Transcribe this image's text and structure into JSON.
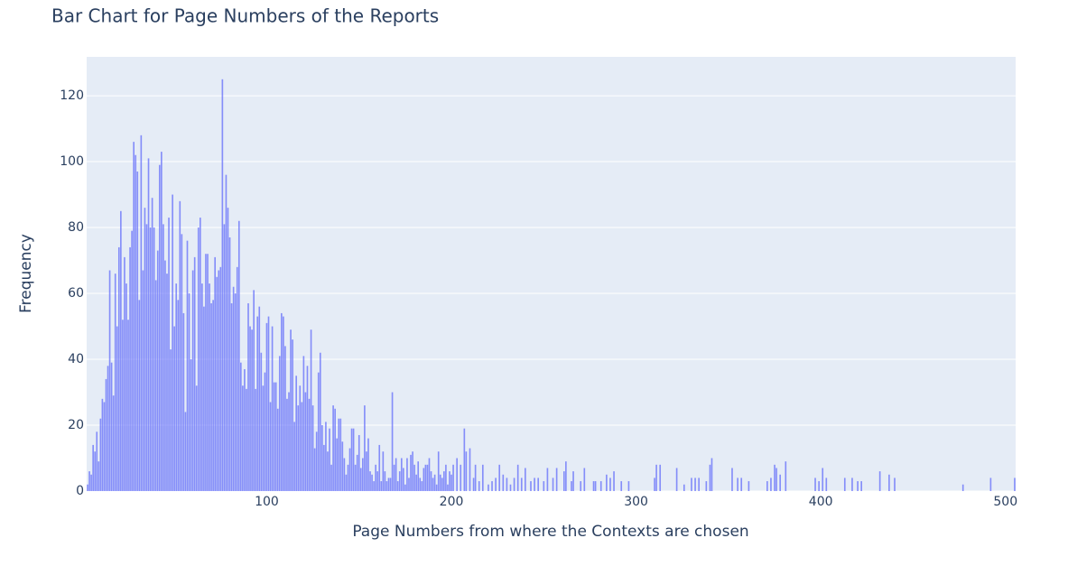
{
  "chart_data": {
    "type": "bar",
    "title": "Bar Chart for Page Numbers of the Reports",
    "x_label": "Page Numbers from where the Contexts are chosen",
    "y_label": "Frequency",
    "color": "#636efa",
    "grid": true,
    "xlim": [
      2.5,
      505.5
    ],
    "ylim": [
      0,
      131.8
    ],
    "xticks": [
      100,
      200,
      300,
      400,
      500
    ],
    "yticks": [
      0,
      20,
      40,
      60,
      80,
      100,
      120
    ],
    "x": [
      3,
      4,
      5,
      6,
      7,
      8,
      9,
      10,
      11,
      12,
      13,
      14,
      15,
      16,
      17,
      18,
      19,
      20,
      21,
      22,
      23,
      24,
      25,
      26,
      27,
      28,
      29,
      30,
      31,
      32,
      33,
      34,
      35,
      36,
      37,
      38,
      39,
      40,
      41,
      42,
      43,
      44,
      45,
      46,
      47,
      48,
      49,
      50,
      51,
      52,
      53,
      54,
      55,
      56,
      57,
      58,
      59,
      60,
      61,
      62,
      63,
      64,
      65,
      66,
      67,
      68,
      69,
      70,
      71,
      72,
      73,
      74,
      75,
      76,
      77,
      78,
      79,
      80,
      81,
      82,
      83,
      84,
      85,
      86,
      87,
      88,
      89,
      90,
      91,
      92,
      93,
      94,
      95,
      96,
      97,
      98,
      99,
      100,
      101,
      102,
      103,
      104,
      105,
      106,
      107,
      108,
      109,
      110,
      111,
      112,
      113,
      114,
      115,
      116,
      117,
      118,
      119,
      120,
      121,
      122,
      123,
      124,
      125,
      126,
      127,
      128,
      129,
      130,
      131,
      132,
      133,
      134,
      135,
      136,
      137,
      138,
      139,
      140,
      141,
      142,
      143,
      144,
      145,
      146,
      147,
      148,
      149,
      150,
      151,
      152,
      153,
      154,
      155,
      156,
      157,
      158,
      159,
      160,
      161,
      162,
      163,
      164,
      165,
      166,
      167,
      168,
      169,
      170,
      171,
      172,
      173,
      174,
      175,
      176,
      177,
      178,
      179,
      180,
      181,
      182,
      183,
      184,
      185,
      186,
      187,
      188,
      189,
      190,
      191,
      192,
      193,
      194,
      195,
      196,
      197,
      198,
      199,
      200,
      201,
      203,
      205,
      207,
      208,
      210,
      212,
      213,
      215,
      217,
      220,
      222,
      224,
      226,
      228,
      230,
      232,
      234,
      236,
      238,
      240,
      243,
      245,
      247,
      250,
      252,
      255,
      257,
      261,
      262,
      265,
      266,
      270,
      272,
      277,
      278,
      281,
      284,
      286,
      288,
      292,
      296,
      310,
      311,
      313,
      322,
      326,
      330,
      332,
      334,
      338,
      340,
      341,
      352,
      355,
      357,
      361,
      371,
      373,
      375,
      376,
      378,
      381,
      397,
      399,
      401,
      403,
      413,
      417,
      420,
      422,
      432,
      437,
      440,
      477,
      492,
      505
    ],
    "values": [
      2,
      6,
      5,
      14,
      12,
      18,
      9,
      22,
      28,
      27,
      34,
      38,
      67,
      39,
      29,
      66,
      50,
      74,
      85,
      52,
      71,
      63,
      52,
      74,
      79,
      106,
      102,
      97,
      58,
      108,
      67,
      86,
      81,
      101,
      80,
      89,
      80,
      64,
      73,
      99,
      103,
      81,
      70,
      66,
      83,
      43,
      90,
      50,
      63,
      58,
      88,
      78,
      54,
      24,
      76,
      60,
      40,
      67,
      71,
      32,
      80,
      83,
      63,
      56,
      72,
      72,
      63,
      57,
      58,
      71,
      65,
      67,
      68,
      125,
      81,
      96,
      86,
      77,
      57,
      62,
      60,
      68,
      82,
      39,
      32,
      37,
      31,
      57,
      50,
      49,
      61,
      31,
      53,
      56,
      42,
      32,
      36,
      51,
      53,
      27,
      50,
      33,
      33,
      25,
      41,
      54,
      53,
      44,
      28,
      30,
      49,
      46,
      21,
      35,
      26,
      32,
      27,
      41,
      30,
      38,
      28,
      49,
      26,
      13,
      18,
      36,
      42,
      20,
      14,
      21,
      12,
      19,
      8,
      26,
      25,
      16,
      22,
      22,
      15,
      10,
      5,
      8,
      13,
      19,
      19,
      8,
      11,
      17,
      7,
      10,
      26,
      12,
      16,
      6,
      5,
      3,
      8,
      6,
      14,
      3,
      12,
      6,
      3,
      4,
      4,
      30,
      8,
      10,
      3,
      6,
      10,
      7,
      2,
      10,
      4,
      11,
      12,
      8,
      5,
      9,
      4,
      3,
      7,
      8,
      8,
      10,
      6,
      4,
      5,
      2,
      12,
      5,
      4,
      6,
      8,
      2,
      6,
      5,
      8,
      10,
      8,
      19,
      12,
      13,
      4,
      8,
      3,
      8,
      2,
      3,
      4,
      8,
      5,
      4,
      2,
      4,
      8,
      4,
      7,
      3,
      4,
      4,
      3,
      7,
      4,
      7,
      6,
      9,
      3,
      6,
      3,
      7,
      3,
      3,
      3,
      5,
      4,
      6,
      3,
      3,
      4,
      8,
      8,
      7,
      2,
      4,
      4,
      4,
      3,
      8,
      10,
      7,
      4,
      4,
      3,
      3,
      4,
      8,
      7,
      5,
      9,
      4,
      3,
      7,
      4,
      4,
      4,
      3,
      3,
      6,
      5,
      4,
      2,
      4,
      4
    ]
  }
}
